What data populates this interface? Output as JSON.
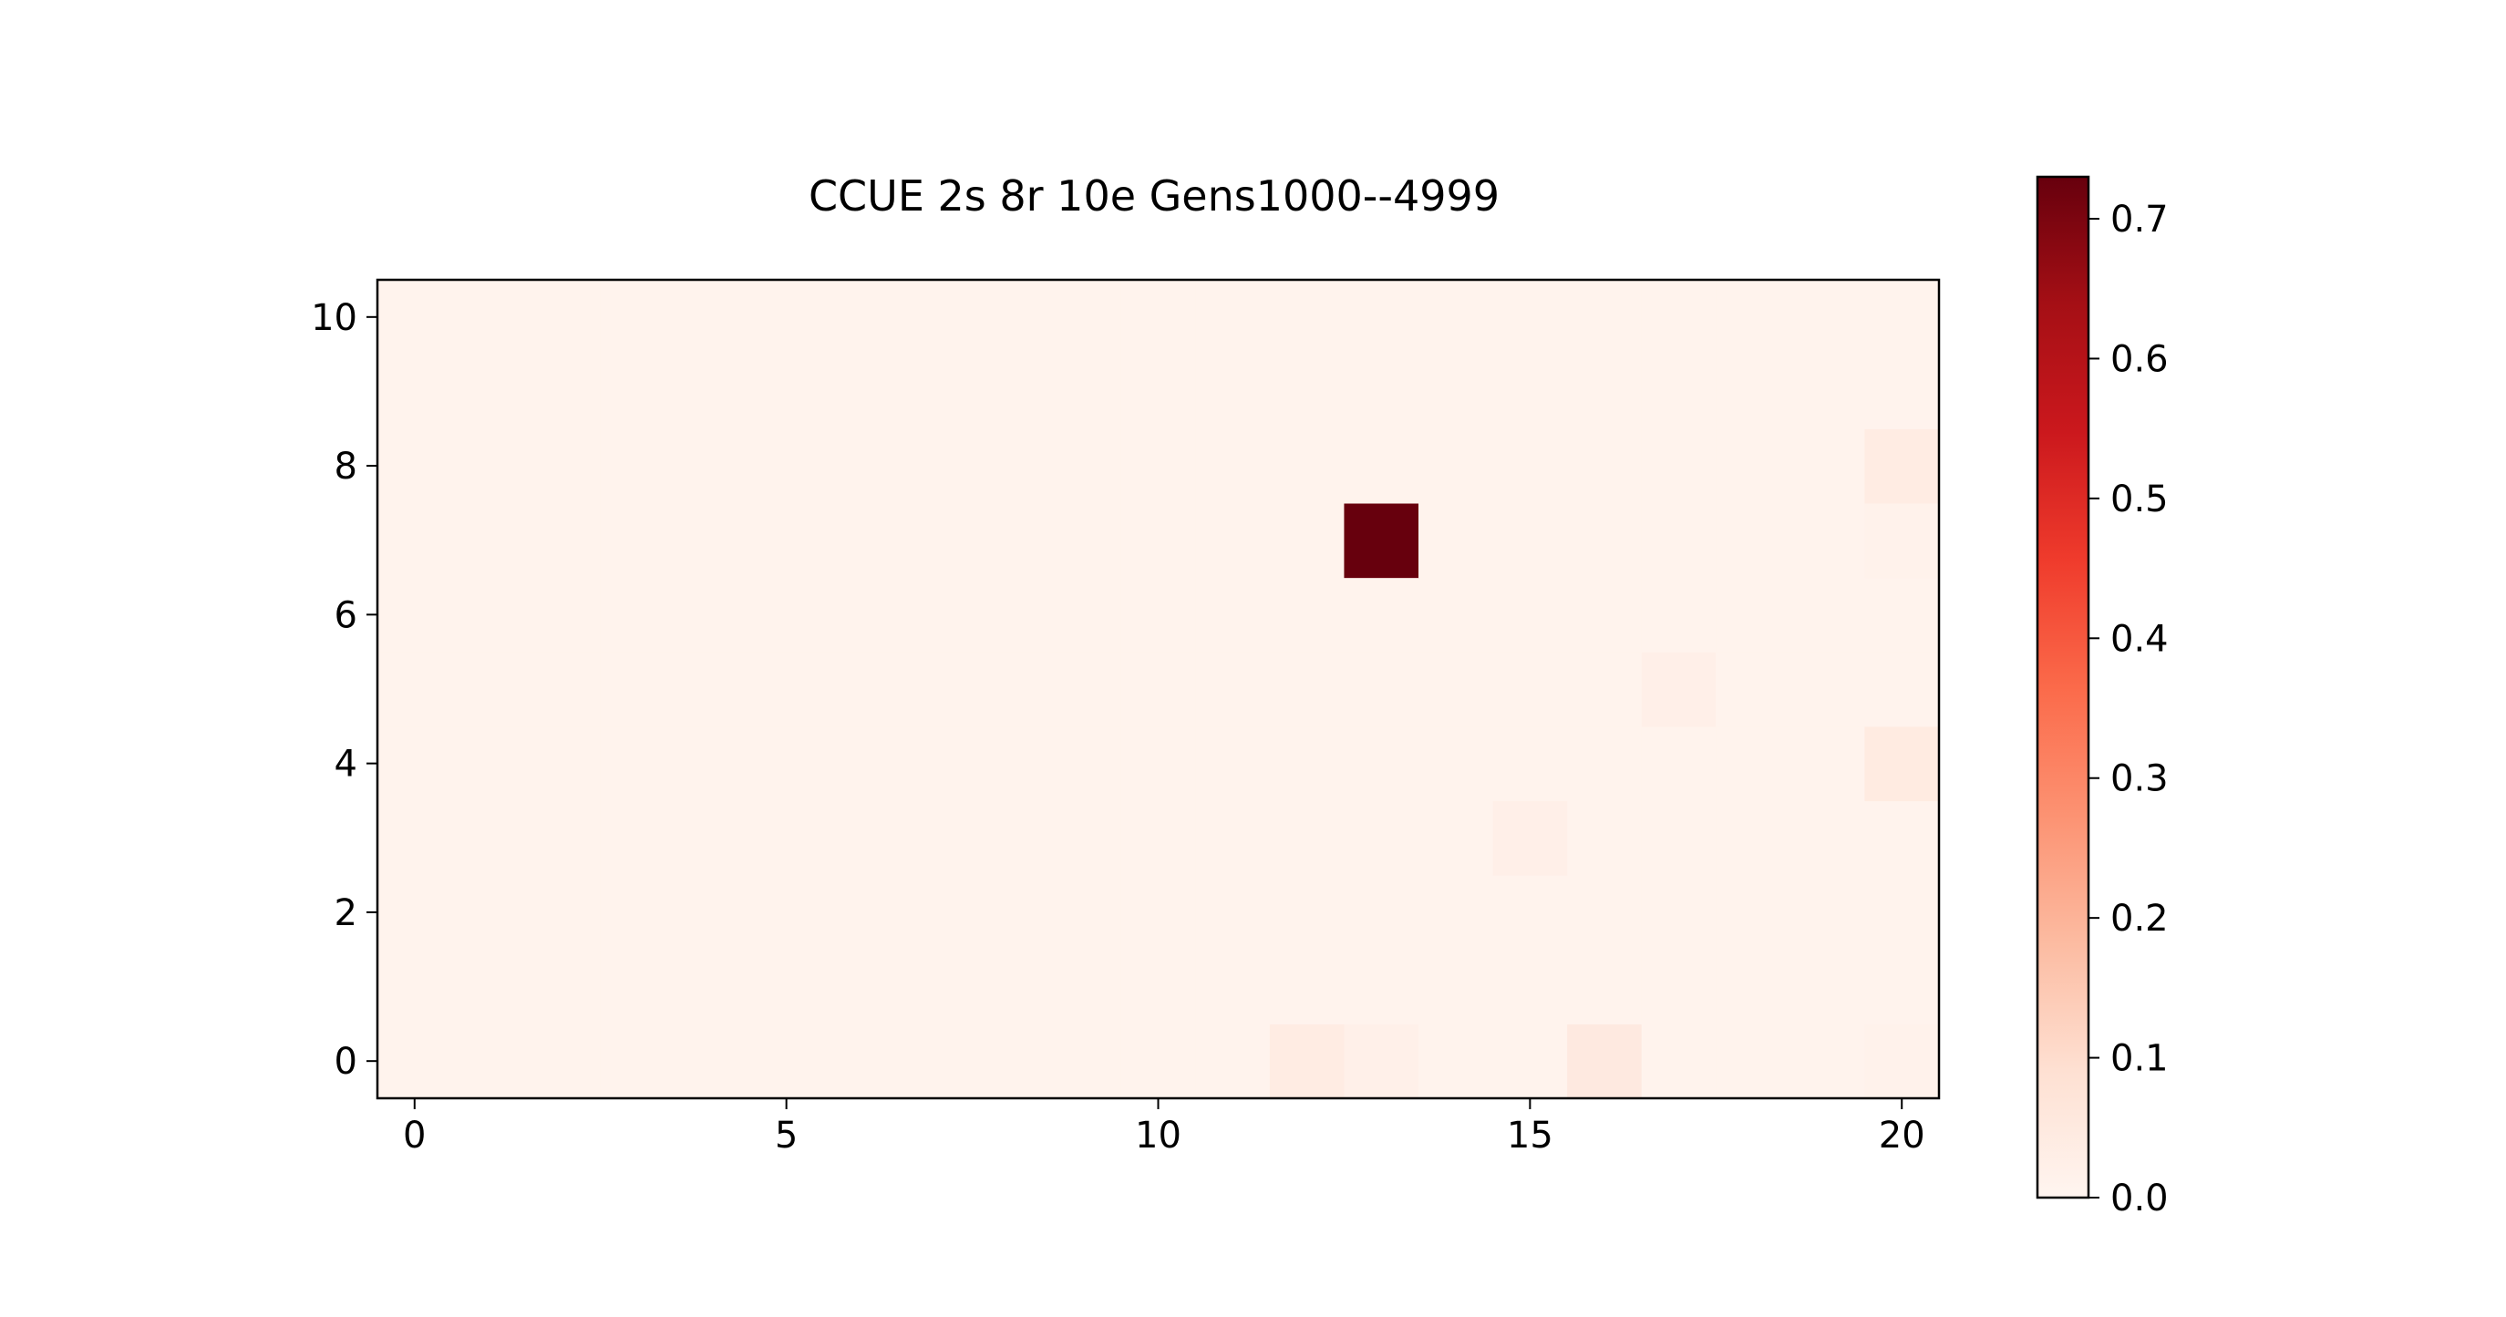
{
  "chart_data": {
    "type": "heatmap",
    "title": "CCUE 2s 8r 10e Gens1000--4999",
    "xlabel": "",
    "ylabel": "",
    "x_range": [
      -0.5,
      20.5
    ],
    "y_range": [
      -0.5,
      10.5
    ],
    "x_ticks": [
      0,
      5,
      10,
      15,
      20
    ],
    "x_tick_labels": [
      "0",
      "5",
      "10",
      "15",
      "20"
    ],
    "y_ticks": [
      0,
      2,
      4,
      6,
      8,
      10
    ],
    "y_tick_labels": [
      "0",
      "2",
      "4",
      "6",
      "8",
      "10"
    ],
    "grid": false,
    "colormap": "Reds",
    "colorbar": {
      "min": 0.0,
      "max": 0.73,
      "ticks": [
        0.0,
        0.1,
        0.2,
        0.3,
        0.4,
        0.5,
        0.6,
        0.7
      ],
      "tick_labels": [
        "0.0",
        "0.1",
        "0.2",
        "0.3",
        "0.4",
        "0.5",
        "0.6",
        "0.7"
      ]
    },
    "background_value": 0.01,
    "highlighted_cells": [
      {
        "x": 13,
        "y": 7,
        "value": 0.73
      },
      {
        "x": 12,
        "y": 0,
        "value": 0.04
      },
      {
        "x": 13,
        "y": 0,
        "value": 0.02
      },
      {
        "x": 16,
        "y": 0,
        "value": 0.05
      },
      {
        "x": 20,
        "y": 0,
        "value": 0.015
      },
      {
        "x": 15,
        "y": 3,
        "value": 0.025
      },
      {
        "x": 20,
        "y": 4,
        "value": 0.045
      },
      {
        "x": 17,
        "y": 5,
        "value": 0.025
      },
      {
        "x": 20,
        "y": 7,
        "value": 0.015
      },
      {
        "x": 20,
        "y": 8,
        "value": 0.04
      }
    ]
  }
}
